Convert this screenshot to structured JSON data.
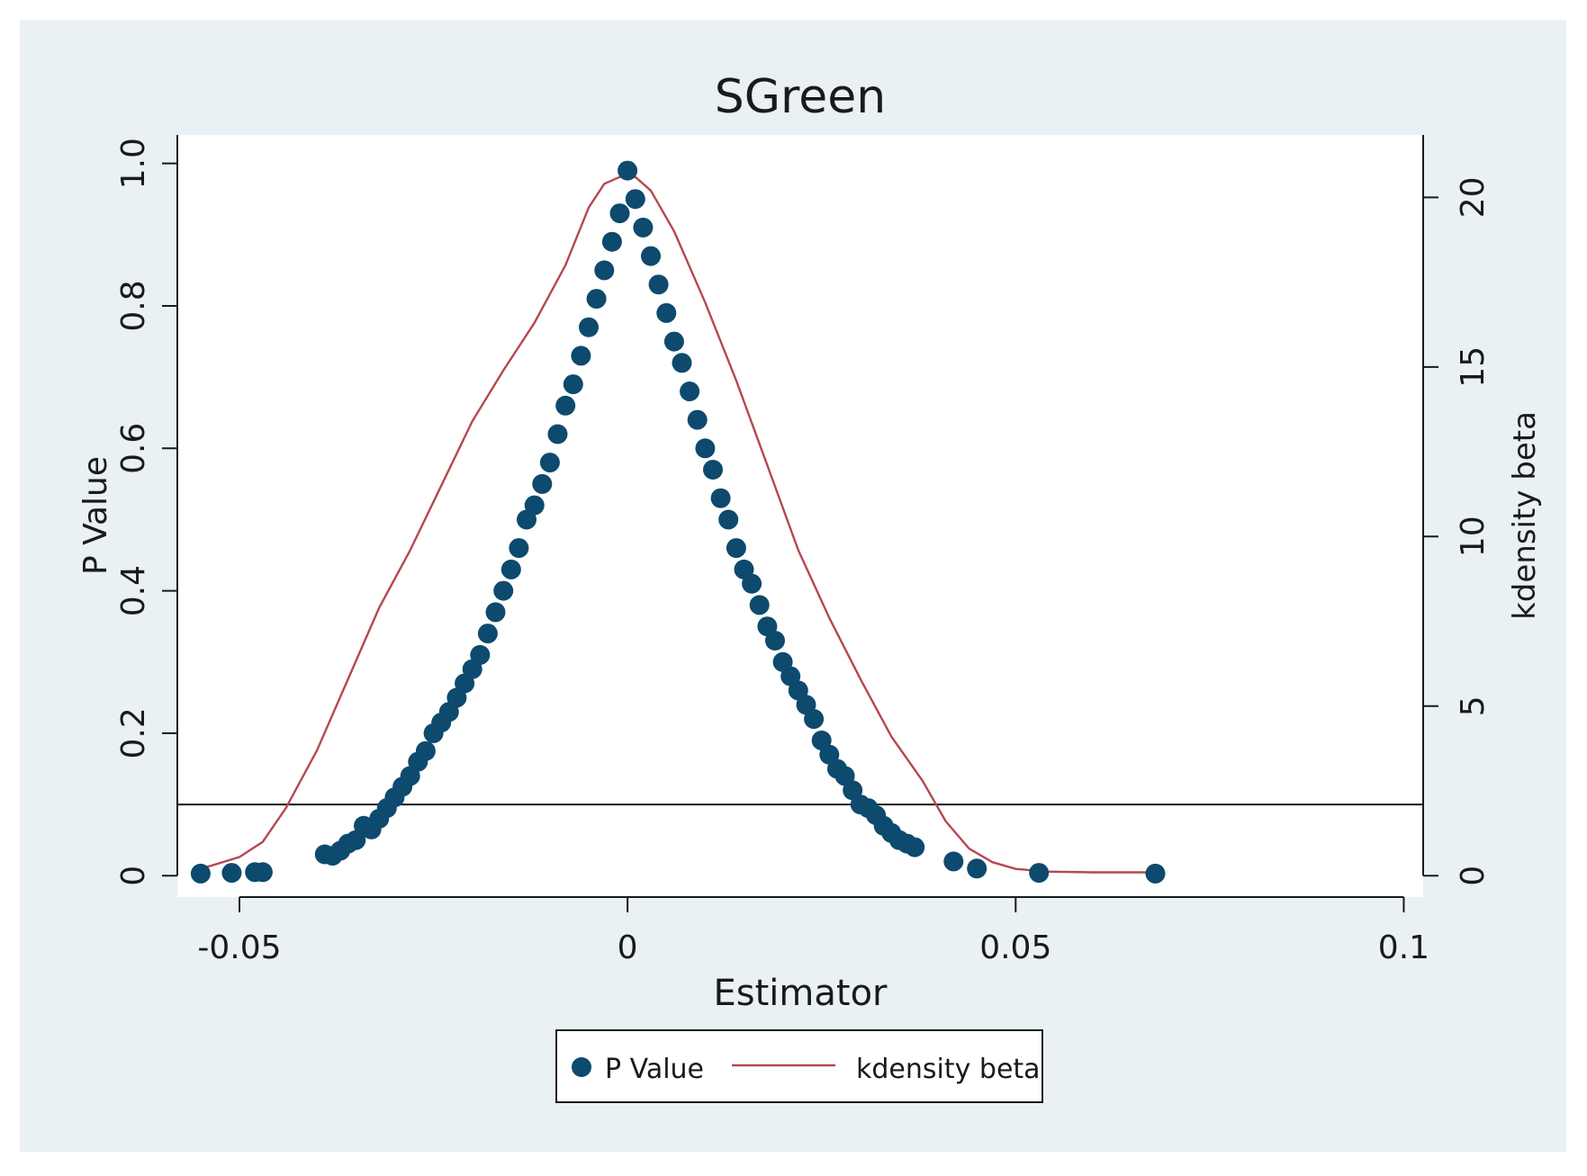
{
  "chart_data": {
    "type": "scatter",
    "title": "SGreen",
    "xlabel": "Estimator",
    "ylabel": "P Value",
    "y2label": "kdensity beta",
    "xlim": [
      -0.058,
      0.1025
    ],
    "ylim": [
      -0.03,
      1.04
    ],
    "y2lim": [
      -0.63,
      21.84
    ],
    "xticks": [
      -0.05,
      0,
      0.05,
      0.1
    ],
    "xtick_labels": [
      "-0.05",
      "0",
      "0.05",
      "0.1"
    ],
    "yticks": [
      0,
      0.2,
      0.4,
      0.6,
      0.8,
      1.0
    ],
    "ytick_labels": [
      "0",
      "0.2",
      "0.4",
      "0.6",
      "0.8",
      "1.0"
    ],
    "y2ticks": [
      0,
      5,
      10,
      15,
      20
    ],
    "y2tick_labels": [
      "0",
      "5",
      "10",
      "15",
      "20"
    ],
    "reference_line_y": 0.1,
    "grid": false,
    "legend_position": "bottom",
    "colors": {
      "outer_background": "#e9f1f5",
      "plot_background": "#ffffff",
      "marker": "#0d4a6e",
      "density_line": "#b5484f",
      "reference_line": "#1a1a1a",
      "axis": "#1a1a1a"
    },
    "series": [
      {
        "name": "P Value",
        "type": "scatter",
        "points": [
          [
            -0.055,
            0.003
          ],
          [
            -0.051,
            0.004
          ],
          [
            -0.048,
            0.005
          ],
          [
            -0.047,
            0.005
          ],
          [
            -0.039,
            0.03
          ],
          [
            -0.038,
            0.028
          ],
          [
            -0.037,
            0.035
          ],
          [
            -0.036,
            0.045
          ],
          [
            -0.035,
            0.05
          ],
          [
            -0.034,
            0.07
          ],
          [
            -0.033,
            0.065
          ],
          [
            -0.032,
            0.08
          ],
          [
            -0.031,
            0.095
          ],
          [
            -0.03,
            0.11
          ],
          [
            -0.029,
            0.125
          ],
          [
            -0.028,
            0.14
          ],
          [
            -0.027,
            0.16
          ],
          [
            -0.026,
            0.175
          ],
          [
            -0.025,
            0.2
          ],
          [
            -0.024,
            0.215
          ],
          [
            -0.023,
            0.23
          ],
          [
            -0.022,
            0.25
          ],
          [
            -0.021,
            0.27
          ],
          [
            -0.02,
            0.29
          ],
          [
            -0.019,
            0.31
          ],
          [
            -0.018,
            0.34
          ],
          [
            -0.017,
            0.37
          ],
          [
            -0.016,
            0.4
          ],
          [
            -0.015,
            0.43
          ],
          [
            -0.014,
            0.46
          ],
          [
            -0.013,
            0.5
          ],
          [
            -0.012,
            0.52
          ],
          [
            -0.011,
            0.55
          ],
          [
            -0.01,
            0.58
          ],
          [
            -0.009,
            0.62
          ],
          [
            -0.008,
            0.66
          ],
          [
            -0.007,
            0.69
          ],
          [
            -0.006,
            0.73
          ],
          [
            -0.005,
            0.77
          ],
          [
            -0.004,
            0.81
          ],
          [
            -0.003,
            0.85
          ],
          [
            -0.002,
            0.89
          ],
          [
            -0.001,
            0.93
          ],
          [
            0.0,
            0.99
          ],
          [
            0.001,
            0.95
          ],
          [
            0.002,
            0.91
          ],
          [
            0.003,
            0.87
          ],
          [
            0.004,
            0.83
          ],
          [
            0.005,
            0.79
          ],
          [
            0.006,
            0.75
          ],
          [
            0.007,
            0.72
          ],
          [
            0.008,
            0.68
          ],
          [
            0.009,
            0.64
          ],
          [
            0.01,
            0.6
          ],
          [
            0.011,
            0.57
          ],
          [
            0.012,
            0.53
          ],
          [
            0.013,
            0.5
          ],
          [
            0.014,
            0.46
          ],
          [
            0.015,
            0.43
          ],
          [
            0.016,
            0.41
          ],
          [
            0.017,
            0.38
          ],
          [
            0.018,
            0.35
          ],
          [
            0.019,
            0.33
          ],
          [
            0.02,
            0.3
          ],
          [
            0.021,
            0.28
          ],
          [
            0.022,
            0.26
          ],
          [
            0.023,
            0.24
          ],
          [
            0.024,
            0.22
          ],
          [
            0.025,
            0.19
          ],
          [
            0.026,
            0.17
          ],
          [
            0.027,
            0.15
          ],
          [
            0.028,
            0.14
          ],
          [
            0.029,
            0.12
          ],
          [
            0.03,
            0.1
          ],
          [
            0.031,
            0.095
          ],
          [
            0.032,
            0.085
          ],
          [
            0.033,
            0.07
          ],
          [
            0.034,
            0.06
          ],
          [
            0.035,
            0.05
          ],
          [
            0.036,
            0.045
          ],
          [
            0.037,
            0.04
          ],
          [
            0.042,
            0.02
          ],
          [
            0.045,
            0.01
          ],
          [
            0.053,
            0.004
          ],
          [
            0.068,
            0.003
          ]
        ]
      },
      {
        "name": "kdensity beta",
        "type": "line",
        "axis": "right",
        "points": [
          [
            -0.055,
            0.2
          ],
          [
            -0.05,
            0.55
          ],
          [
            -0.047,
            1.0
          ],
          [
            -0.044,
            2.0
          ],
          [
            -0.04,
            3.7
          ],
          [
            -0.036,
            5.8
          ],
          [
            -0.032,
            7.9
          ],
          [
            -0.028,
            9.6
          ],
          [
            -0.024,
            11.5
          ],
          [
            -0.02,
            13.4
          ],
          [
            -0.016,
            14.9
          ],
          [
            -0.012,
            16.3
          ],
          [
            -0.008,
            18.0
          ],
          [
            -0.005,
            19.7
          ],
          [
            -0.003,
            20.4
          ],
          [
            -0.001,
            20.6
          ],
          [
            0.001,
            20.6
          ],
          [
            0.003,
            20.2
          ],
          [
            0.006,
            19.0
          ],
          [
            0.01,
            16.9
          ],
          [
            0.014,
            14.6
          ],
          [
            0.018,
            12.1
          ],
          [
            0.022,
            9.6
          ],
          [
            0.026,
            7.6
          ],
          [
            0.03,
            5.8
          ],
          [
            0.034,
            4.1
          ],
          [
            0.038,
            2.8
          ],
          [
            0.041,
            1.6
          ],
          [
            0.044,
            0.8
          ],
          [
            0.047,
            0.4
          ],
          [
            0.05,
            0.2
          ],
          [
            0.054,
            0.12
          ],
          [
            0.06,
            0.1
          ],
          [
            0.068,
            0.1
          ]
        ]
      }
    ],
    "legend": [
      "P Value",
      "kdensity beta"
    ]
  }
}
